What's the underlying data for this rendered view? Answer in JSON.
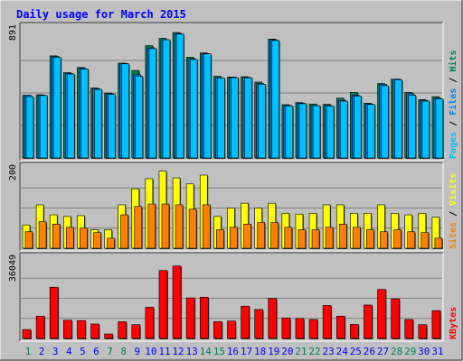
{
  "colors": {
    "background": "#c0c0c0",
    "panel": "#c0c0c0",
    "border_light": "#ffffff",
    "border_dark": "#404040",
    "title_text": "#0000ff",
    "hits": "#00805c",
    "files": "#0080ff",
    "pages": "#00c0ff",
    "visits": "#ffff00",
    "sites": "#ff8000",
    "kbytes": "#ff0000",
    "weekend_label": "#00805c",
    "weekday_label": "#0000ff",
    "grid": "#808080"
  },
  "chart_data": {
    "type": "bar",
    "title": "Daily usage for March 2015",
    "categories": [
      "1",
      "2",
      "3",
      "4",
      "5",
      "6",
      "7",
      "8",
      "9",
      "10",
      "11",
      "12",
      "13",
      "14",
      "15",
      "16",
      "17",
      "18",
      "19",
      "20",
      "21",
      "22",
      "23",
      "24",
      "25",
      "26",
      "27",
      "28",
      "29",
      "30",
      "31"
    ],
    "weekend_days": [
      "1",
      "7",
      "8",
      "14",
      "15",
      "21",
      "22",
      "28",
      "29"
    ],
    "panels": [
      {
        "id": "hits",
        "max_label": "891",
        "ymax": 891,
        "legend": [
          {
            "text": "Pages",
            "color": "#00c0ff"
          },
          {
            "text": " / ",
            "color": "#000000"
          },
          {
            "text": "Files",
            "color": "#0080ff"
          },
          {
            "text": " / ",
            "color": "#000000"
          },
          {
            "text": "Hits",
            "color": "#00805c"
          }
        ],
        "series": [
          {
            "name": "Hits",
            "color": "#00805c",
            "values": [
              430,
              433,
              700,
              585,
              620,
              480,
              445,
              650,
              600,
              770,
              820,
              860,
              690,
              720,
              560,
              555,
              557,
              520,
              815,
              365,
              380,
              370,
              368,
              410,
              450,
              375,
              510,
              540,
              450,
              400,
              420
            ]
          },
          {
            "name": "Files",
            "color": "#0080ff",
            "values": [
              428,
              430,
              695,
              580,
              615,
              475,
              440,
              648,
              570,
              755,
              810,
              853,
              680,
              715,
              550,
              553,
              553,
              510,
              810,
              360,
              375,
              360,
              360,
              395,
              430,
              370,
              505,
              540,
              440,
              395,
              410
            ]
          },
          {
            "name": "Pages",
            "color": "#00c0ff",
            "values": [
              420,
              428,
              690,
              575,
              610,
              470,
              435,
              645,
              560,
              750,
              810,
              850,
              675,
              713,
              548,
              550,
              550,
              505,
              805,
              357,
              372,
              358,
              356,
              390,
              425,
              367,
              495,
              535,
              430,
              390,
              405
            ]
          }
        ]
      },
      {
        "id": "visits",
        "max_label": "200",
        "ymax": 200,
        "legend": [
          {
            "text": "Sites",
            "color": "#ff8000"
          },
          {
            "text": " / ",
            "color": "#000000"
          },
          {
            "text": "Visits",
            "color": "#ffff00"
          }
        ],
        "series": [
          {
            "name": "Visits",
            "color": "#ffff00",
            "values": [
              58,
              108,
              83,
              79,
              81,
              46,
              46,
              108,
              148,
              173,
              192,
              175,
              160,
              182,
              79,
              100,
              112,
              100,
              112,
              87,
              85,
              87,
              108,
              108,
              87,
              87,
              108,
              87,
              83,
              87,
              77
            ]
          },
          {
            "name": "Sites",
            "color": "#ff8000",
            "values": [
              41,
              66,
              60,
              52,
              50,
              39,
              25,
              83,
              104,
              110,
              110,
              108,
              97,
              108,
              46,
              52,
              60,
              64,
              64,
              52,
              46,
              46,
              52,
              60,
              52,
              46,
              41,
              46,
              41,
              39,
              25
            ]
          }
        ]
      },
      {
        "id": "kbytes",
        "max_label": "36049",
        "ymax": 36049,
        "legend": [
          {
            "text": "KBytes",
            "color": "#ff0000"
          }
        ],
        "series": [
          {
            "name": "KBytes",
            "color": "#ff0000",
            "values": [
              4000,
              10000,
              23000,
              8200,
              8000,
              6500,
              2000,
              7500,
              6200,
              14000,
              30500,
              32500,
              18200,
              18500,
              7500,
              7800,
              14500,
              13000,
              18000,
              9200,
              9000,
              8500,
              14800,
              10000,
              6300,
              15000,
              22000,
              17800,
              8500,
              6200,
              12500
            ]
          }
        ]
      }
    ]
  }
}
